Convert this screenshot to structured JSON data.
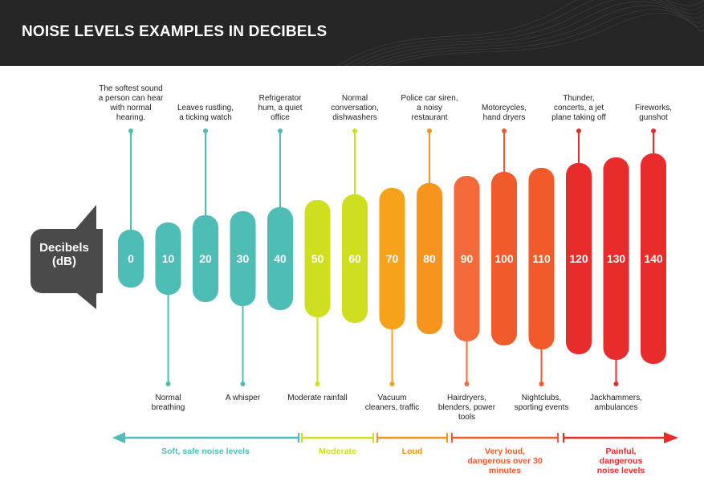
{
  "title": "NOISE LEVELS EXAMPLES IN DECIBELS",
  "speaker_label": "Decibels (dB)",
  "levels": [
    {
      "value": "0",
      "color": "#4dbdb5",
      "caption": "The softest sound a person can hear with normal hearing.",
      "caption_side": "top"
    },
    {
      "value": "10",
      "color": "#4dbdb5",
      "caption": "Normal breathing",
      "caption_side": "bottom"
    },
    {
      "value": "20",
      "color": "#4dbdb5",
      "caption": "Leaves rustling, a ticking watch",
      "caption_side": "top"
    },
    {
      "value": "30",
      "color": "#4dbdb5",
      "caption": "A whisper",
      "caption_side": "bottom"
    },
    {
      "value": "40",
      "color": "#4dbdb5",
      "caption": "Refrigerator hum, a quiet office",
      "caption_side": "top"
    },
    {
      "value": "50",
      "color": "#cfdf1f",
      "caption": "Moderate rainfall",
      "caption_side": "bottom"
    },
    {
      "value": "60",
      "color": "#cfdf1f",
      "caption": "Normal conversation, dishwashers",
      "caption_side": "top"
    },
    {
      "value": "70",
      "color": "#f7a21b",
      "caption": "Vacuum cleaners, traffic",
      "caption_side": "bottom"
    },
    {
      "value": "80",
      "color": "#f7941d",
      "caption": "Police car siren, a noisy restaurant",
      "caption_side": "top"
    },
    {
      "value": "90",
      "color": "#f26a3a",
      "caption": "Hairdryers, blenders, power tools",
      "caption_side": "bottom"
    },
    {
      "value": "100",
      "color": "#f15a2b",
      "caption": "Motorcycles, hand dryers",
      "caption_side": "top"
    },
    {
      "value": "110",
      "color": "#f15a2b",
      "caption": "Nightclubs, sporting events",
      "caption_side": "bottom"
    },
    {
      "value": "120",
      "color": "#e82b2b",
      "caption": "Thunder, concerts, a jet plane taking off",
      "caption_side": "top"
    },
    {
      "value": "130",
      "color": "#e82b2b",
      "caption": "Jackhammers, ambulances",
      "caption_side": "bottom"
    },
    {
      "value": "140",
      "color": "#e82b2b",
      "caption": "Fireworks, gunshot",
      "caption_side": "top"
    }
  ],
  "ranges": [
    {
      "label": "Soft, safe noise levels",
      "color": "#4dbdb5"
    },
    {
      "label": "Moderate",
      "color": "#cfdf1f"
    },
    {
      "label": "Loud",
      "color": "#f7941d"
    },
    {
      "label": "Very loud, dangerous over 30 minutes",
      "color": "#f15a2b"
    },
    {
      "label": "Painful, dangerous noise levels",
      "color": "#e82b2b"
    }
  ],
  "colors": {
    "header_bg": "#262626",
    "speaker": "#4a4a4a"
  }
}
